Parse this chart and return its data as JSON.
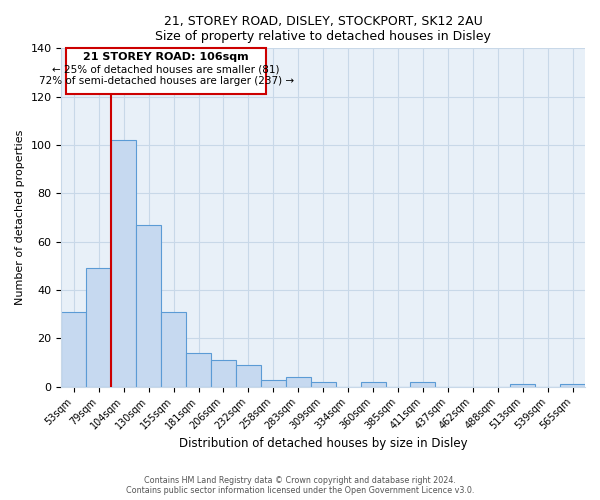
{
  "title1": "21, STOREY ROAD, DISLEY, STOCKPORT, SK12 2AU",
  "title2": "Size of property relative to detached houses in Disley",
  "xlabel": "Distribution of detached houses by size in Disley",
  "ylabel": "Number of detached properties",
  "bar_labels": [
    "53sqm",
    "79sqm",
    "104sqm",
    "130sqm",
    "155sqm",
    "181sqm",
    "206sqm",
    "232sqm",
    "258sqm",
    "283sqm",
    "309sqm",
    "334sqm",
    "360sqm",
    "385sqm",
    "411sqm",
    "437sqm",
    "462sqm",
    "488sqm",
    "513sqm",
    "539sqm",
    "565sqm"
  ],
  "bar_values": [
    31,
    49,
    102,
    67,
    31,
    14,
    11,
    9,
    3,
    4,
    2,
    0,
    2,
    0,
    2,
    0,
    0,
    0,
    1,
    0,
    1
  ],
  "bar_color": "#c6d9f0",
  "bar_edge_color": "#5b9bd5",
  "vline_color": "#cc0000",
  "annotation_text_line1": "21 STOREY ROAD: 106sqm",
  "annotation_text_line2": "← 25% of detached houses are smaller (81)",
  "annotation_text_line3": "72% of semi-detached houses are larger (237) →",
  "annotation_box_color": "#cc0000",
  "annotation_fill": "#ffffff",
  "ylim": [
    0,
    140
  ],
  "yticks": [
    0,
    20,
    40,
    60,
    80,
    100,
    120,
    140
  ],
  "footer1": "Contains HM Land Registry data © Crown copyright and database right 2024.",
  "footer2": "Contains public sector information licensed under the Open Government Licence v3.0.",
  "grid_color": "#c8d8e8",
  "bg_color": "#e8f0f8"
}
